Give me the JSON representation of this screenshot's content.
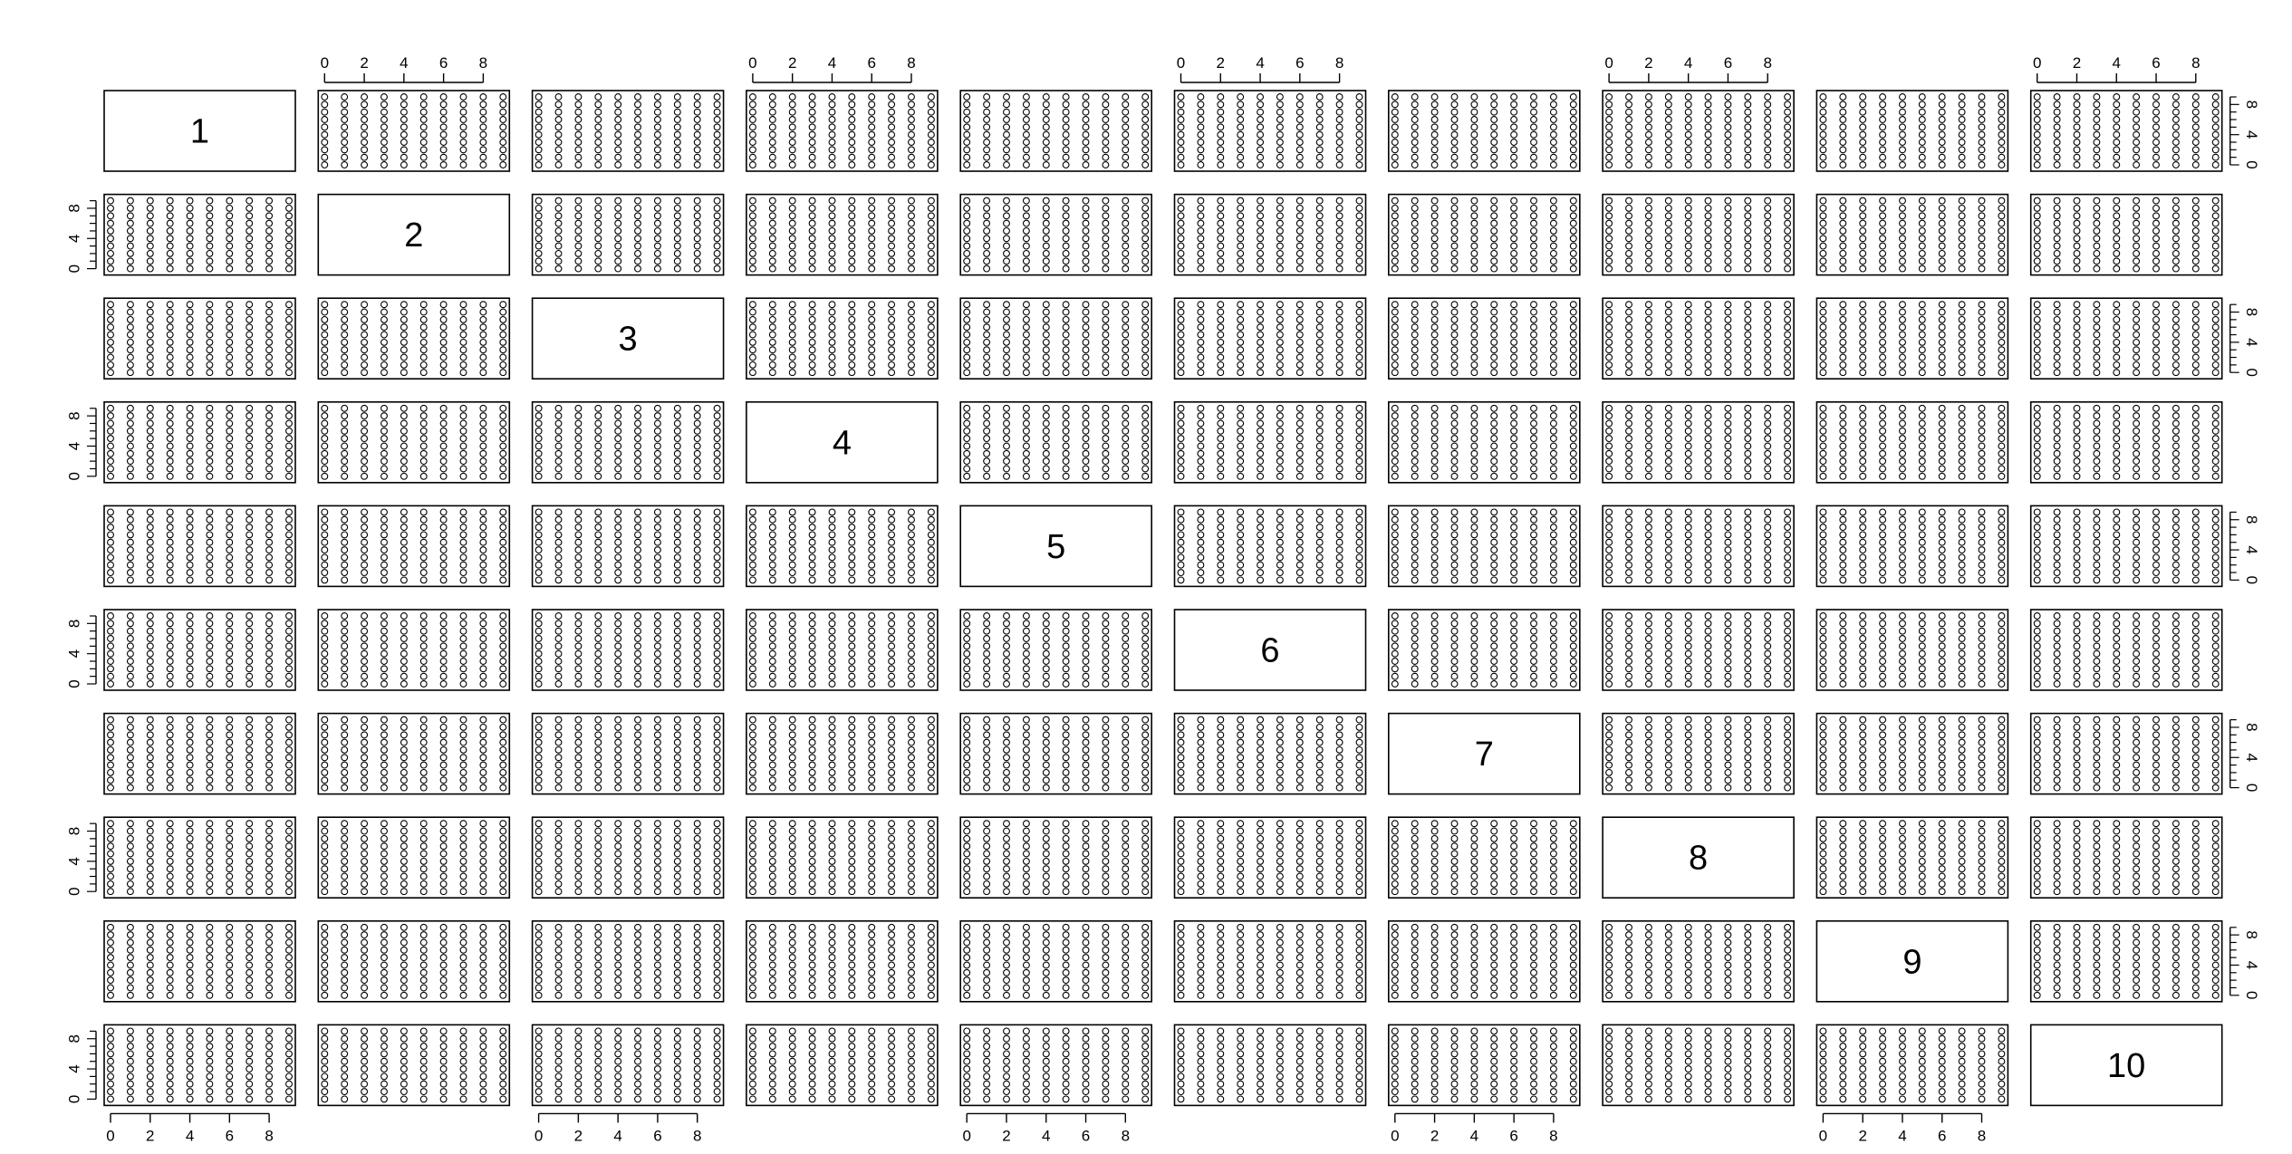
{
  "chart_data": {
    "type": "scatter",
    "layout": "pairs-matrix",
    "variables": [
      "1",
      "2",
      "3",
      "4",
      "5",
      "6",
      "7",
      "8",
      "9",
      "10"
    ],
    "axis_range": [
      0,
      9
    ],
    "tick_labels": [
      "0",
      "2",
      "4",
      "6",
      "8"
    ],
    "tick_values": [
      0,
      2,
      4,
      6,
      8
    ],
    "minor_tick_values": [
      0,
      1,
      2,
      3,
      4,
      5,
      6,
      7,
      8,
      9
    ],
    "grid_values": [
      0,
      1,
      2,
      3,
      4,
      5,
      6,
      7,
      8,
      9
    ],
    "panel_points_x": [
      0,
      1,
      2,
      3,
      4,
      5,
      6,
      7,
      8,
      9
    ],
    "panel_points_y": [
      0,
      1,
      2,
      3,
      4,
      5,
      6,
      7,
      8,
      9
    ],
    "point_shape": "open-circle",
    "point_color": "#000000",
    "grid": false,
    "legend": "none"
  }
}
